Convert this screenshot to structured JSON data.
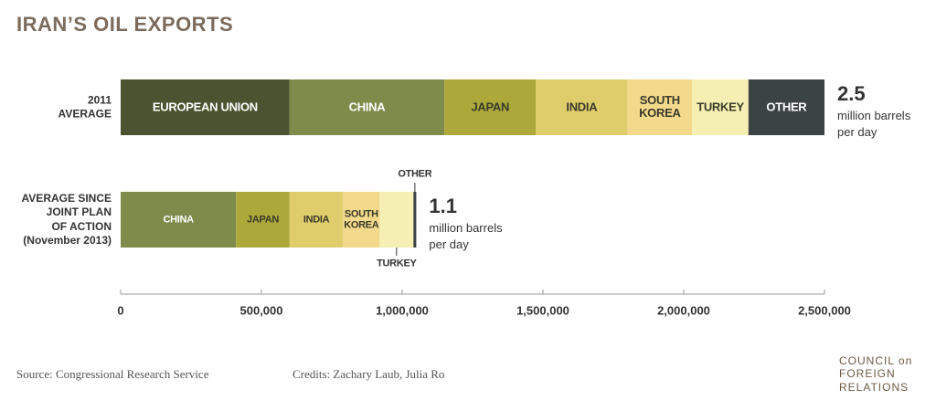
{
  "chart_data": {
    "type": "stacked-barh",
    "title": "IRAN’S OIL EXPORTS",
    "categories": [
      "2011\nAVERAGE",
      "AVERAGE SINCE\nJOINT PLAN\nOF ACTION\n(November 2013)"
    ],
    "series": [
      {
        "name": "EUROPEAN UNION",
        "color": "#4b5330",
        "values": [
          600000,
          null
        ]
      },
      {
        "name": "CHINA",
        "color": "#7f8b4b",
        "values": [
          550000,
          410000
        ]
      },
      {
        "name": "JAPAN",
        "color": "#aca93a",
        "values": [
          325000,
          190000
        ]
      },
      {
        "name": "INDIA",
        "color": "#dfcd6c",
        "values": [
          325000,
          190000
        ]
      },
      {
        "name": "SOUTH\nKOREA",
        "color": "#f3d98b",
        "values": [
          230000,
          130000
        ]
      },
      {
        "name": "TURKEY",
        "color": "#f6efb3",
        "values": [
          200000,
          120000
        ]
      },
      {
        "name": "OTHER",
        "color": "#3c4343",
        "values": [
          270000,
          10000
        ]
      }
    ],
    "totals": [
      {
        "value": 2500000,
        "label": "2.5"
      },
      {
        "value": 1100000,
        "label": "1.1"
      }
    ],
    "totals_unit": "million barrels\nper day",
    "xlim": [
      0,
      2500000
    ],
    "xticks": [
      0,
      {
        "value": 500000,
        "label": "500,000"
      },
      {
        "value": 1000000,
        "label": "1,000,000"
      },
      {
        "value": 1500000,
        "label": "1,500,000"
      },
      {
        "value": 2000000,
        "label": "2,000,000"
      },
      {
        "value": 2500000,
        "label": "2,500,000"
      }
    ],
    "grid": false
  },
  "footer": {
    "source": "Source: Congressional Research Service",
    "credits": "Credits: Zachary Laub, Julia Ro",
    "logo": "COUNCIL on\nFOREIGN\nRELATIONS"
  }
}
